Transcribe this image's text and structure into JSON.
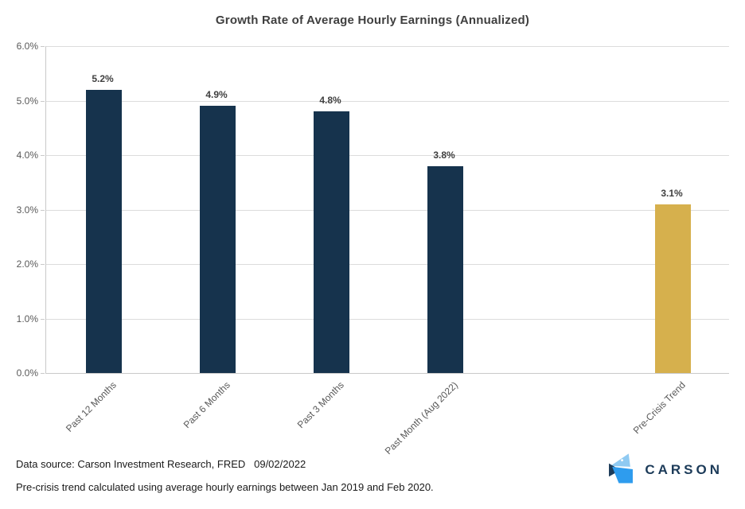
{
  "title": "Growth Rate of Average Hourly Earnings (Annualized)",
  "chart_data": {
    "type": "bar",
    "title": "Growth Rate of Average Hourly Earnings (Annualized)",
    "categories": [
      "Past 12 Months",
      "Past 6 Months",
      "Past 3 Months",
      "Past Month (Aug 2022)",
      "",
      "Pre-Crisis Trend"
    ],
    "values": [
      5.2,
      4.9,
      4.8,
      3.8,
      null,
      3.1
    ],
    "value_labels": [
      "5.2%",
      "4.9%",
      "4.8%",
      "3.8%",
      "",
      "3.1%"
    ],
    "bar_colors": [
      "#16334d",
      "#16334d",
      "#16334d",
      "#16334d",
      null,
      "#d6b04d"
    ],
    "xlabel": "",
    "ylabel": "",
    "ylim": [
      0,
      6
    ],
    "ytick_step": 1,
    "ytick_labels": [
      "0.0%",
      "1.0%",
      "2.0%",
      "3.0%",
      "4.0%",
      "5.0%",
      "6.0%"
    ],
    "grid": true,
    "legend": false,
    "colors": {
      "bar_navy": "#16334d",
      "bar_gold": "#d6b04d",
      "gridline": "#dcdcdc",
      "axis_text": "#595959",
      "label_text": "#3f3f3f"
    }
  },
  "footer": {
    "source_line": "Data source: Carson Investment Research, FRED   09/02/2022",
    "note_line": "Pre-crisis trend calculated using average hourly earnings between Jan 2019 and Feb 2020."
  },
  "logo": {
    "text": "CARSON",
    "icon": "carson-mark",
    "colors": {
      "light_blue": "#8fcaf2",
      "bright_blue": "#2e9cee",
      "navy": "#1c3b59"
    }
  }
}
